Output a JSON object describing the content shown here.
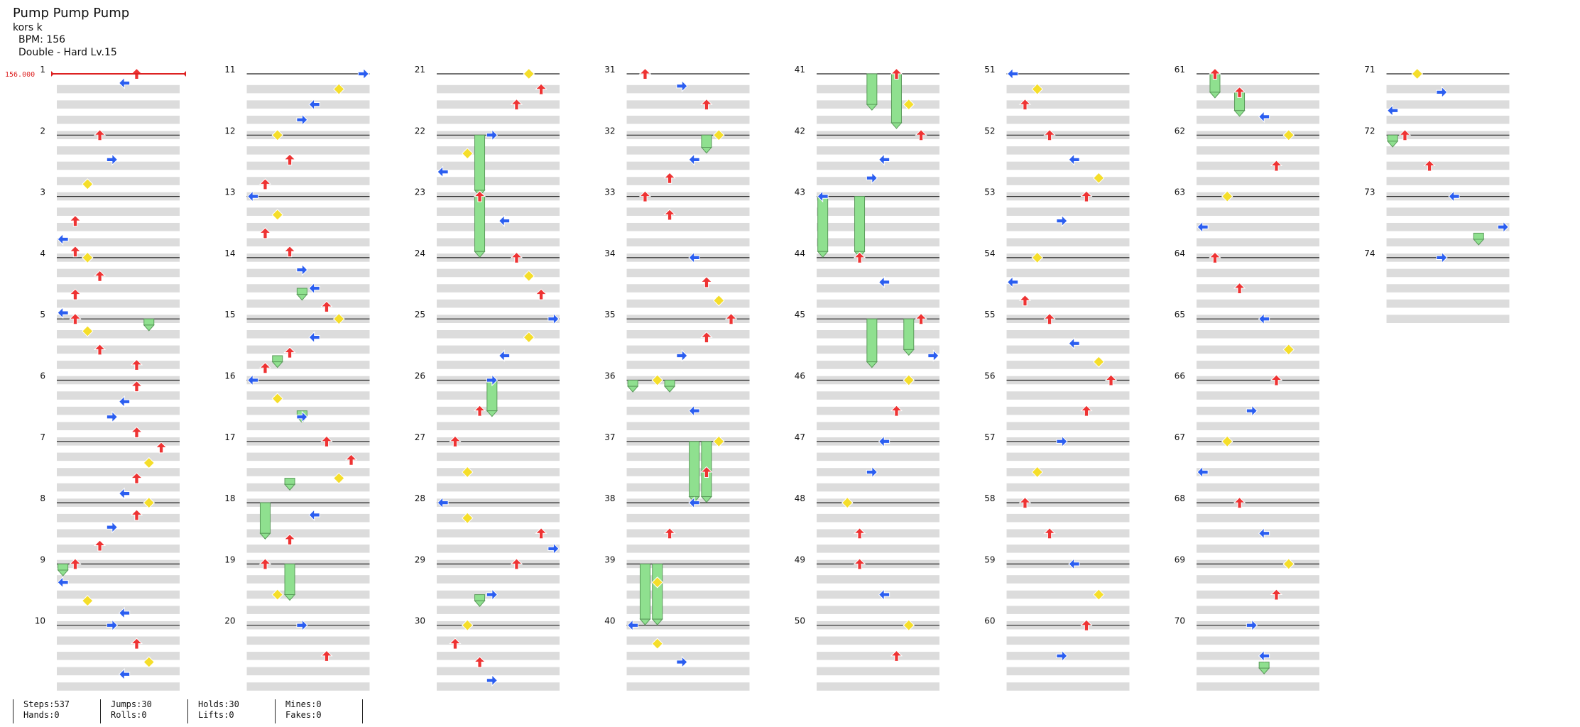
{
  "song": {
    "title": "Pump Pump Pump",
    "artist": "kors k",
    "bpm_text": "BPM: 156",
    "difficulty_text": "Double - Hard  Lv.15"
  },
  "bpm_marker": {
    "label": "156.000"
  },
  "measures": {
    "first": 1,
    "last": 74,
    "per_column": 10,
    "columns": 8
  },
  "stats": [
    {
      "top": "Steps:537",
      "bottom": "Hands:0"
    },
    {
      "top": "Jumps:30",
      "bottom": "Rolls:0"
    },
    {
      "top": "Holds:30",
      "bottom": "Lifts:0"
    },
    {
      "top": "Mines:0",
      "bottom": "Fakes:0"
    }
  ],
  "colors": {
    "red_arrow": "#ee3333",
    "blue_arrow": "#2b5ef0",
    "yellow_arrow": "#f5de2a",
    "purple_arrow": "#b43cf0",
    "hold_body": "#8fe08f",
    "stripe": "#dcdcdc",
    "bpm_line": "#dd2222"
  },
  "notes": [
    {
      "m": 1,
      "b": 0,
      "l": 6
    },
    {
      "m": 1,
      "b": 0.15,
      "l": 5
    },
    {
      "m": 2,
      "b": 0,
      "l": 3
    },
    {
      "m": 2,
      "b": 0.4,
      "l": 4
    },
    {
      "m": 2,
      "b": 0.8,
      "l": 2
    },
    {
      "m": 3,
      "b": 0.4,
      "l": 1
    },
    {
      "m": 3,
      "b": 0.7,
      "l": 0
    },
    {
      "m": 3,
      "b": 0.9,
      "l": 1
    },
    {
      "m": 4,
      "b": 0.0,
      "l": 2
    },
    {
      "m": 4,
      "b": 0.3,
      "l": 3
    },
    {
      "m": 4,
      "b": 0.6,
      "l": 1
    },
    {
      "m": 4,
      "b": 0.9,
      "l": 0
    },
    {
      "m": 5,
      "b": 0,
      "l": 1
    },
    {
      "m": 5,
      "b": 0.2,
      "l": 2
    },
    {
      "m": 5,
      "b": 0.5,
      "l": 3
    },
    {
      "m": 5,
      "b": 0.75,
      "l": 6
    },
    {
      "m": 6,
      "b": 0.1,
      "l": 6
    },
    {
      "m": 6,
      "b": 0.35,
      "l": 5
    },
    {
      "m": 6,
      "b": 0.6,
      "l": 4
    },
    {
      "m": 6,
      "b": 0.85,
      "l": 6
    },
    {
      "m": 7,
      "b": 0.1,
      "l": 8
    },
    {
      "m": 7,
      "b": 0.35,
      "l": 7
    },
    {
      "m": 7,
      "b": 0.6,
      "l": 6
    },
    {
      "m": 7,
      "b": 0.85,
      "l": 5
    },
    {
      "m": 8,
      "b": 0,
      "l": 7
    },
    {
      "m": 8,
      "b": 0.2,
      "l": 6
    },
    {
      "m": 8,
      "b": 0.4,
      "l": 4
    },
    {
      "m": 8,
      "b": 0.7,
      "l": 3
    },
    {
      "m": 9,
      "b": 0,
      "l": 1
    },
    {
      "m": 9,
      "b": 0.3,
      "l": 0
    },
    {
      "m": 9,
      "b": 0.6,
      "l": 2
    },
    {
      "m": 9,
      "b": 0.8,
      "l": 5
    },
    {
      "m": 10,
      "b": 0,
      "l": 4
    },
    {
      "m": 10,
      "b": 0.3,
      "l": 6
    },
    {
      "m": 10,
      "b": 0.6,
      "l": 7
    },
    {
      "m": 10,
      "b": 0.8,
      "l": 5
    },
    {
      "m": 11,
      "b": 0,
      "l": 9
    },
    {
      "m": 11,
      "b": 0.25,
      "l": 7
    },
    {
      "m": 11,
      "b": 0.5,
      "l": 5
    },
    {
      "m": 11,
      "b": 0.75,
      "l": 4
    },
    {
      "m": 12,
      "b": 0,
      "l": 2
    },
    {
      "m": 12,
      "b": 0.4,
      "l": 3
    },
    {
      "m": 12,
      "b": 0.8,
      "l": 1
    },
    {
      "m": 13,
      "b": 0,
      "l": 0
    },
    {
      "m": 13,
      "b": 0.3,
      "l": 2
    },
    {
      "m": 13,
      "b": 0.6,
      "l": 1
    },
    {
      "m": 13,
      "b": 0.9,
      "l": 3
    },
    {
      "m": 14,
      "b": 0.2,
      "l": 4
    },
    {
      "m": 14,
      "b": 0.5,
      "l": 5
    },
    {
      "m": 14,
      "b": 0.8,
      "l": 6
    },
    {
      "m": 15,
      "b": 0,
      "l": 7
    },
    {
      "m": 15,
      "b": 0.3,
      "l": 5
    },
    {
      "m": 15,
      "b": 0.55,
      "l": 3
    },
    {
      "m": 15,
      "b": 0.8,
      "l": 1
    },
    {
      "m": 16,
      "b": 0,
      "l": 0
    },
    {
      "m": 16,
      "b": 0.3,
      "l": 2
    },
    {
      "m": 16,
      "b": 0.6,
      "l": 4
    },
    {
      "m": 17,
      "b": 0,
      "l": 6
    },
    {
      "m": 17,
      "b": 0.3,
      "l": 8
    },
    {
      "m": 17,
      "b": 0.6,
      "l": 7
    },
    {
      "m": 18,
      "b": 0.2,
      "l": 5
    },
    {
      "m": 18,
      "b": 0.6,
      "l": 3
    },
    {
      "m": 19,
      "b": 0,
      "l": 1
    },
    {
      "m": 19,
      "b": 0.5,
      "l": 2
    },
    {
      "m": 20,
      "b": 0,
      "l": 4
    },
    {
      "m": 20,
      "b": 0.5,
      "l": 6
    },
    {
      "m": 21,
      "b": 0,
      "l": 7
    },
    {
      "m": 21,
      "b": 0.25,
      "l": 8
    },
    {
      "m": 21,
      "b": 0.5,
      "l": 6
    },
    {
      "m": 22,
      "b": 0,
      "l": 4
    },
    {
      "m": 22,
      "b": 0.3,
      "l": 2
    },
    {
      "m": 22,
      "b": 0.6,
      "l": 0
    },
    {
      "m": 23,
      "b": 0,
      "l": 3
    },
    {
      "m": 23,
      "b": 0.4,
      "l": 5
    },
    {
      "m": 24,
      "b": 0,
      "l": 6
    },
    {
      "m": 24,
      "b": 0.3,
      "l": 7
    },
    {
      "m": 24,
      "b": 0.6,
      "l": 8
    },
    {
      "m": 25,
      "b": 0,
      "l": 9
    },
    {
      "m": 25,
      "b": 0.3,
      "l": 7
    },
    {
      "m": 25,
      "b": 0.6,
      "l": 5
    },
    {
      "m": 26,
      "b": 0,
      "l": 4
    },
    {
      "m": 26,
      "b": 0.5,
      "l": 3
    },
    {
      "m": 27,
      "b": 0,
      "l": 1
    },
    {
      "m": 27,
      "b": 0.5,
      "l": 2
    },
    {
      "m": 28,
      "b": 0,
      "l": 0
    },
    {
      "m": 28,
      "b": 0.25,
      "l": 2
    },
    {
      "m": 28,
      "b": 0.5,
      "l": 8
    },
    {
      "m": 28,
      "b": 0.75,
      "l": 9
    },
    {
      "m": 29,
      "b": 0,
      "l": 6
    },
    {
      "m": 29,
      "b": 0.5,
      "l": 4
    },
    {
      "m": 30,
      "b": 0,
      "l": 2
    },
    {
      "m": 30,
      "b": 0.3,
      "l": 1
    },
    {
      "m": 30,
      "b": 0.6,
      "l": 3
    },
    {
      "m": 30,
      "b": 0.9,
      "l": 4
    },
    {
      "m": 31,
      "b": 0,
      "l": 1
    },
    {
      "m": 31,
      "b": 0.2,
      "l": 4
    },
    {
      "m": 31,
      "b": 0.5,
      "l": 6
    },
    {
      "m": 32,
      "b": 0,
      "l": 7
    },
    {
      "m": 32,
      "b": 0.4,
      "l": 5
    },
    {
      "m": 32,
      "b": 0.7,
      "l": 3
    },
    {
      "m": 33,
      "b": 0,
      "l": 1
    },
    {
      "m": 33,
      "b": 0.3,
      "l": 3
    },
    {
      "m": 34,
      "b": 0,
      "l": 5
    },
    {
      "m": 34,
      "b": 0.4,
      "l": 6
    },
    {
      "m": 34,
      "b": 0.7,
      "l": 7
    },
    {
      "m": 35,
      "b": 0,
      "l": 8
    },
    {
      "m": 35,
      "b": 0.3,
      "l": 6
    },
    {
      "m": 35,
      "b": 0.6,
      "l": 4
    },
    {
      "m": 36,
      "b": 0,
      "l": 2
    },
    {
      "m": 36,
      "b": 0.5,
      "l": 5
    },
    {
      "m": 37,
      "b": 0,
      "l": 7
    },
    {
      "m": 37,
      "b": 0.5,
      "l": 6
    },
    {
      "m": 38,
      "b": 0,
      "l": 5
    },
    {
      "m": 38,
      "b": 0.5,
      "l": 3
    },
    {
      "m": 39,
      "b": 0.3,
      "l": 2
    },
    {
      "m": 40,
      "b": 0,
      "l": 0
    },
    {
      "m": 40,
      "b": 0.3,
      "l": 2
    },
    {
      "m": 40,
      "b": 0.6,
      "l": 4
    },
    {
      "m": 41,
      "b": 0,
      "l": 6
    },
    {
      "m": 41,
      "b": 0.5,
      "l": 7
    },
    {
      "m": 42,
      "b": 0,
      "l": 8
    },
    {
      "m": 42,
      "b": 0.4,
      "l": 5
    },
    {
      "m": 42,
      "b": 0.7,
      "l": 4
    },
    {
      "m": 43,
      "b": 0,
      "l": 0
    },
    {
      "m": 44,
      "b": 0,
      "l": 3
    },
    {
      "m": 44,
      "b": 0.4,
      "l": 5
    },
    {
      "m": 45,
      "b": 0,
      "l": 8
    },
    {
      "m": 45,
      "b": 0.6,
      "l": 9
    },
    {
      "m": 46,
      "b": 0,
      "l": 7
    },
    {
      "m": 46,
      "b": 0.5,
      "l": 6
    },
    {
      "m": 47,
      "b": 0,
      "l": 5
    },
    {
      "m": 47,
      "b": 0.5,
      "l": 4
    },
    {
      "m": 48,
      "b": 0,
      "l": 2
    },
    {
      "m": 48,
      "b": 0.5,
      "l": 3
    },
    {
      "m": 49,
      "b": 0,
      "l": 3
    },
    {
      "m": 49,
      "b": 0.5,
      "l": 5
    },
    {
      "m": 50,
      "b": 0,
      "l": 7
    },
    {
      "m": 50,
      "b": 0.5,
      "l": 6
    },
    {
      "m": 51,
      "b": 0,
      "l": 0
    },
    {
      "m": 51,
      "b": 0.25,
      "l": 2
    },
    {
      "m": 51,
      "b": 0.5,
      "l": 1
    },
    {
      "m": 52,
      "b": 0,
      "l": 3
    },
    {
      "m": 52,
      "b": 0.4,
      "l": 5
    },
    {
      "m": 52,
      "b": 0.7,
      "l": 7
    },
    {
      "m": 53,
      "b": 0,
      "l": 6
    },
    {
      "m": 53,
      "b": 0.4,
      "l": 4
    },
    {
      "m": 54,
      "b": 0,
      "l": 2
    },
    {
      "m": 54,
      "b": 0.4,
      "l": 0
    },
    {
      "m": 54,
      "b": 0.7,
      "l": 1
    },
    {
      "m": 55,
      "b": 0,
      "l": 3
    },
    {
      "m": 55,
      "b": 0.4,
      "l": 5
    },
    {
      "m": 55,
      "b": 0.7,
      "l": 7
    },
    {
      "m": 56,
      "b": 0,
      "l": 8
    },
    {
      "m": 56,
      "b": 0.5,
      "l": 6
    },
    {
      "m": 57,
      "b": 0,
      "l": 4
    },
    {
      "m": 57,
      "b": 0.5,
      "l": 2
    },
    {
      "m": 58,
      "b": 0,
      "l": 1
    },
    {
      "m": 58,
      "b": 0.5,
      "l": 3
    },
    {
      "m": 59,
      "b": 0,
      "l": 5
    },
    {
      "m": 59,
      "b": 0.5,
      "l": 7
    },
    {
      "m": 60,
      "b": 0,
      "l": 6
    },
    {
      "m": 60,
      "b": 0.5,
      "l": 4
    },
    {
      "m": 61,
      "b": 0,
      "l": 1
    },
    {
      "m": 61,
      "b": 0.3,
      "l": 3
    },
    {
      "m": 61,
      "b": 0.7,
      "l": 5
    },
    {
      "m": 62,
      "b": 0,
      "l": 7
    },
    {
      "m": 62,
      "b": 0.5,
      "l": 6
    },
    {
      "m": 63,
      "b": 0,
      "l": 2
    },
    {
      "m": 63,
      "b": 0.5,
      "l": 0
    },
    {
      "m": 64,
      "b": 0,
      "l": 1
    },
    {
      "m": 64,
      "b": 0.5,
      "l": 3
    },
    {
      "m": 65,
      "b": 0,
      "l": 5
    },
    {
      "m": 65,
      "b": 0.5,
      "l": 7
    },
    {
      "m": 66,
      "b": 0,
      "l": 6
    },
    {
      "m": 66,
      "b": 0.5,
      "l": 4
    },
    {
      "m": 67,
      "b": 0,
      "l": 2
    },
    {
      "m": 67,
      "b": 0.5,
      "l": 0
    },
    {
      "m": 68,
      "b": 0,
      "l": 3
    },
    {
      "m": 68,
      "b": 0.5,
      "l": 5
    },
    {
      "m": 69,
      "b": 0,
      "l": 7
    },
    {
      "m": 69,
      "b": 0.5,
      "l": 6
    },
    {
      "m": 70,
      "b": 0,
      "l": 4
    },
    {
      "m": 70,
      "b": 0.5,
      "l": 5
    },
    {
      "m": 71,
      "b": 0,
      "l": 2
    },
    {
      "m": 71,
      "b": 0.3,
      "l": 4
    },
    {
      "m": 71,
      "b": 0.6,
      "l": 0
    },
    {
      "m": 72,
      "b": 0,
      "l": 1
    },
    {
      "m": 72,
      "b": 0.5,
      "l": 3
    },
    {
      "m": 73,
      "b": 0,
      "l": 5
    },
    {
      "m": 73,
      "b": 0.5,
      "l": 9
    },
    {
      "m": 74,
      "b": 0,
      "l": 4
    }
  ],
  "holds": [
    {
      "m": 5,
      "b": 0.0,
      "l": 7,
      "len": 0.1
    },
    {
      "m": 9,
      "b": 0.0,
      "l": 0,
      "len": 0.1
    },
    {
      "m": 14,
      "b": 0.5,
      "l": 4,
      "len": 0.1
    },
    {
      "m": 15,
      "b": 0.6,
      "l": 2,
      "len": 0.1
    },
    {
      "m": 16,
      "b": 0.5,
      "l": 4,
      "len": 0.1
    },
    {
      "m": 17,
      "b": 0.6,
      "l": 3,
      "len": 0.1
    },
    {
      "m": 18,
      "b": 0.0,
      "l": 1,
      "len": 0.5
    },
    {
      "m": 19,
      "b": 0.0,
      "l": 3,
      "len": 0.5
    },
    {
      "m": 22,
      "b": 0.0,
      "l": 3,
      "len": 0.9
    },
    {
      "m": 23,
      "b": 0.0,
      "l": 3,
      "len": 0.9
    },
    {
      "m": 26,
      "b": 0.0,
      "l": 4,
      "len": 0.5
    },
    {
      "m": 32,
      "b": 0.0,
      "l": 6,
      "len": 0.2
    },
    {
      "m": 36,
      "b": 0.0,
      "l": 0,
      "len": 0.1
    },
    {
      "m": 36,
      "b": 0.0,
      "l": 3,
      "len": 0.1
    },
    {
      "m": 37,
      "b": 0.0,
      "l": 5,
      "len": 0.9
    },
    {
      "m": 37,
      "b": 0.0,
      "l": 6,
      "len": 0.9
    },
    {
      "m": 39,
      "b": 0.0,
      "l": 1,
      "len": 0.9
    },
    {
      "m": 39,
      "b": 0.0,
      "l": 2,
      "len": 0.9
    },
    {
      "m": 41,
      "b": 0.0,
      "l": 4,
      "len": 0.5
    },
    {
      "m": 41,
      "b": 0.0,
      "l": 6,
      "len": 0.8
    },
    {
      "m": 43,
      "b": 0.0,
      "l": 0,
      "len": 0.9
    },
    {
      "m": 43,
      "b": 0.0,
      "l": 3,
      "len": 0.9
    },
    {
      "m": 45,
      "b": 0.0,
      "l": 4,
      "len": 0.7
    },
    {
      "m": 45,
      "b": 0.0,
      "l": 7,
      "len": 0.5
    },
    {
      "m": 61,
      "b": 0.0,
      "l": 1,
      "len": 0.3
    },
    {
      "m": 61,
      "b": 0.3,
      "l": 3,
      "len": 0.3
    },
    {
      "m": 70,
      "b": 0.6,
      "l": 5,
      "len": 0.1
    },
    {
      "m": 72,
      "b": 0.0,
      "l": 0,
      "len": 0.1
    },
    {
      "m": 73,
      "b": 0.6,
      "l": 7,
      "len": 0.1
    },
    {
      "m": 29,
      "b": 0.5,
      "l": 3,
      "len": 0.1
    }
  ]
}
